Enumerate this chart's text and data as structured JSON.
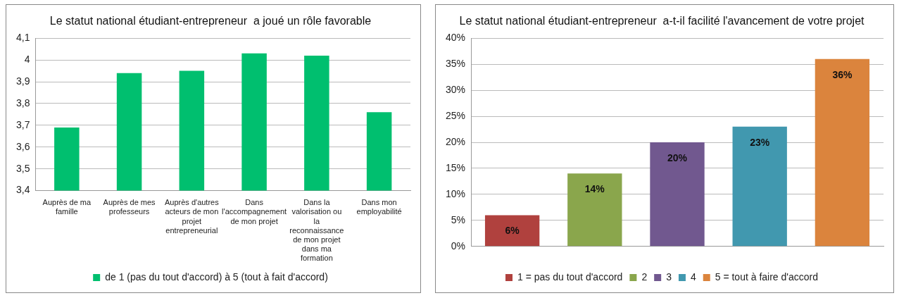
{
  "chart_data": [
    {
      "type": "bar",
      "title": "Le statut national étudiant-entrepreneur  a joué un rôle favorable",
      "categories": [
        "Auprès de ma famille",
        "Auprès de mes professeurs",
        "Auprès d'autres acteurs de mon projet entrepreneurial",
        "Dans l'accompagnement de mon projet",
        "Dans la valorisation ou la reconnaissance de mon projet dans ma formation",
        "Dans mon employabilité"
      ],
      "series": [
        {
          "name": "de 1 (pas du tout d'accord) à 5 (tout à fait d'accord)",
          "color": "#00bf6f",
          "values": [
            3.69,
            3.94,
            3.95,
            4.03,
            4.02,
            3.76
          ]
        }
      ],
      "ylim": [
        3.4,
        4.1
      ],
      "yticks": [
        {
          "value": 3.4,
          "label": "3,4"
        },
        {
          "value": 3.5,
          "label": "3,5"
        },
        {
          "value": 3.6,
          "label": "3,6"
        },
        {
          "value": 3.7,
          "label": "3,7"
        },
        {
          "value": 3.8,
          "label": "3,8"
        },
        {
          "value": 3.9,
          "label": "3,9"
        },
        {
          "value": 4,
          "label": "4"
        },
        {
          "value": 4.1,
          "label": "4,1"
        }
      ],
      "grid": "y",
      "legend": "bottom"
    },
    {
      "type": "bar",
      "title": "Le statut national étudiant-entrepreneur  a-t-il facilité l'avancement de votre projet",
      "categories": [
        null
      ],
      "series": [
        {
          "name": "1 = pas du tout d'accord",
          "color": "#b0413e",
          "values": [
            6
          ],
          "value_labels": [
            "6%"
          ]
        },
        {
          "name": "2",
          "color": "#8aa64c",
          "values": [
            14
          ],
          "value_labels": [
            "14%"
          ]
        },
        {
          "name": "3",
          "color": "#71588f",
          "values": [
            20
          ],
          "value_labels": [
            "20%"
          ]
        },
        {
          "name": "4",
          "color": "#4198af",
          "values": [
            23
          ],
          "value_labels": [
            "23%"
          ]
        },
        {
          "name": "5 = tout à faire d'accord",
          "color": "#db843d",
          "values": [
            36
          ],
          "value_labels": [
            "36%"
          ]
        }
      ],
      "ylim": [
        0,
        40
      ],
      "yticks": [
        {
          "value": 0,
          "label": "0%"
        },
        {
          "value": 5,
          "label": "5%"
        },
        {
          "value": 10,
          "label": "10%"
        },
        {
          "value": 15,
          "label": "15%"
        },
        {
          "value": 20,
          "label": "20%"
        },
        {
          "value": 25,
          "label": "25%"
        },
        {
          "value": 30,
          "label": "30%"
        },
        {
          "value": 35,
          "label": "35%"
        },
        {
          "value": 40,
          "label": "40%"
        }
      ],
      "grid": "y",
      "legend": "bottom"
    }
  ]
}
